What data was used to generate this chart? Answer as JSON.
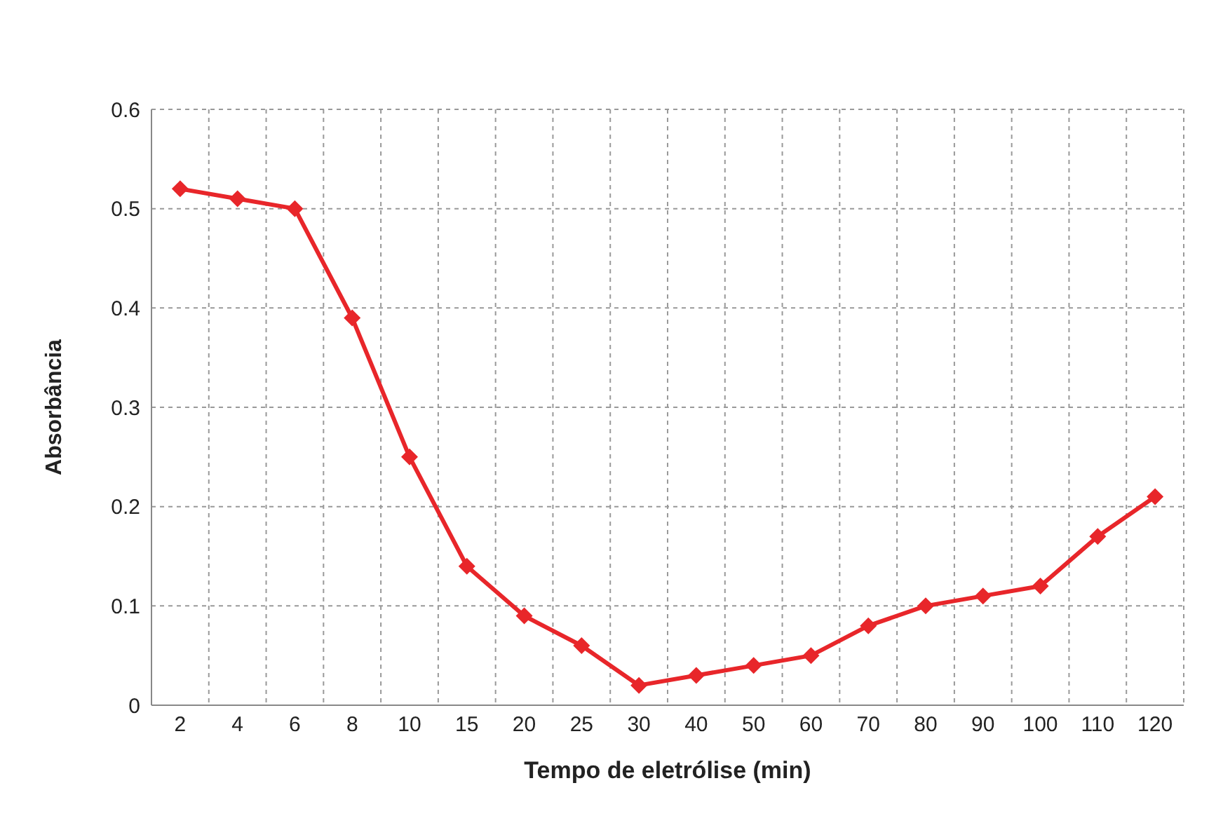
{
  "chart_data": {
    "type": "line",
    "xlabel": "Tempo de eletrólise (min)",
    "ylabel": "Absorbância",
    "categories": [
      "2",
      "4",
      "6",
      "8",
      "10",
      "15",
      "20",
      "25",
      "30",
      "40",
      "50",
      "60",
      "70",
      "80",
      "90",
      "100",
      "110",
      "120"
    ],
    "series": [
      {
        "color": "#e8262a",
        "values": [
          0.52,
          0.51,
          0.5,
          0.39,
          0.25,
          0.14,
          0.09,
          0.06,
          0.02,
          0.03,
          0.04,
          0.05,
          0.08,
          0.1,
          0.11,
          0.12,
          0.17,
          0.21
        ]
      }
    ],
    "ylim": [
      0,
      0.6
    ],
    "yticks": [
      0,
      0.1,
      0.2,
      0.3,
      0.4,
      0.5,
      0.6
    ],
    "grid": true,
    "marker": "diamond",
    "line_style": "solid"
  }
}
